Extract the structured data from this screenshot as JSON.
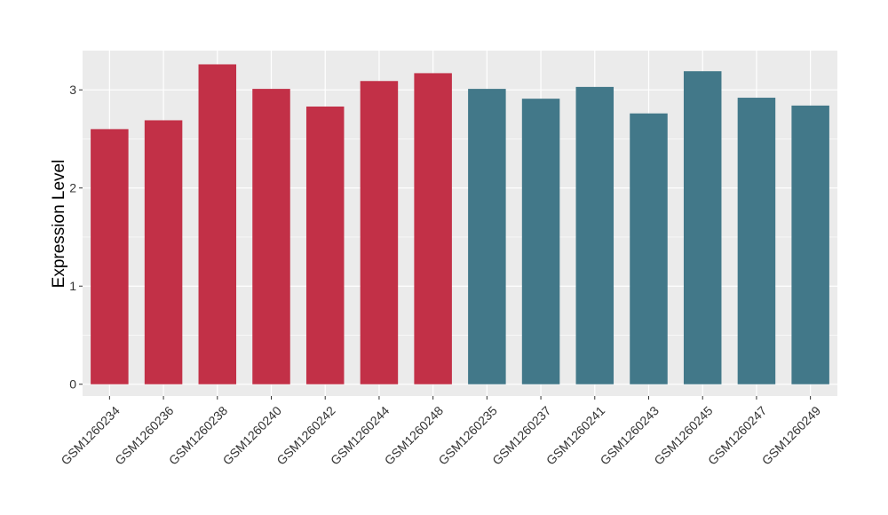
{
  "chart_data": {
    "type": "bar",
    "title": "",
    "xlabel": "",
    "ylabel": "Expression Level",
    "ylim": [
      -0.12,
      3.4
    ],
    "yticks": [
      0,
      1,
      2,
      3
    ],
    "grid": true,
    "categories": [
      "GSM1260234",
      "GSM1260236",
      "GSM1260238",
      "GSM1260240",
      "GSM1260242",
      "GSM1260244",
      "GSM1260248",
      "GSM1260235",
      "GSM1260237",
      "GSM1260241",
      "GSM1260243",
      "GSM1260245",
      "GSM1260247",
      "GSM1260249"
    ],
    "values": [
      2.6,
      2.69,
      3.26,
      3.01,
      2.83,
      3.09,
      3.17,
      3.01,
      2.91,
      3.03,
      2.76,
      3.19,
      2.92,
      2.84
    ],
    "groups": [
      "a",
      "a",
      "a",
      "a",
      "a",
      "a",
      "a",
      "b",
      "b",
      "b",
      "b",
      "b",
      "b",
      "b"
    ],
    "colors": {
      "a": "#c23047",
      "b": "#427889"
    },
    "panel_background": "#ebebeb",
    "grid_color": "#ffffff"
  }
}
